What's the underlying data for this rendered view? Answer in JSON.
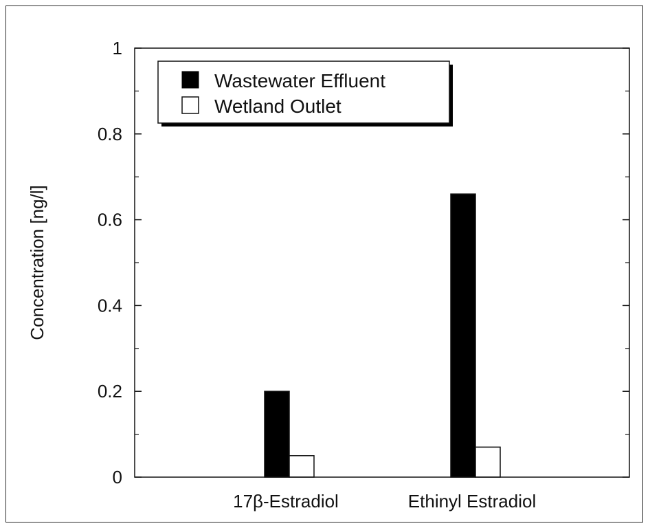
{
  "chart_data": {
    "type": "bar",
    "title": "",
    "xlabel": "",
    "ylabel": "Concentration [ng/l]",
    "categories": [
      "17β-Estradiol",
      "Ethinyl Estradiol"
    ],
    "series": [
      {
        "name": "Wastewater Effluent",
        "values": [
          0.2,
          0.66
        ],
        "color": "#000000"
      },
      {
        "name": "Wetland Outlet",
        "values": [
          0.05,
          0.07
        ],
        "color": "#ffffff"
      }
    ],
    "ylim": [
      0,
      1
    ],
    "yticks": [
      0,
      0.2,
      0.4,
      0.6,
      0.8,
      1
    ],
    "ytick_labels": [
      "0",
      "0.2",
      "0.4",
      "0.6",
      "0.8",
      "1"
    ],
    "grid": false,
    "legend_position": "top-left"
  }
}
